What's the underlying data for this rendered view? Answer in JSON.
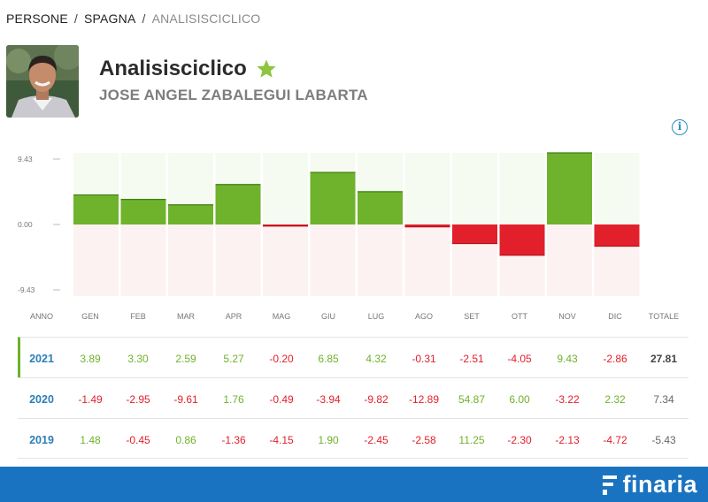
{
  "breadcrumb": [
    {
      "label": "PERSONE"
    },
    {
      "label": "SPAGNA"
    },
    {
      "label": "ANALISISCICLICO"
    }
  ],
  "profile": {
    "title": "Analisisciclico",
    "subtitle": "JOSE ANGEL ZABALEGUI LABARTA",
    "favorite_icon": "star-icon",
    "favorite_color": "#8cc63f"
  },
  "chart_data": {
    "type": "bar",
    "categories": [
      "GEN",
      "FEB",
      "MAR",
      "APR",
      "MAG",
      "GIU",
      "LUG",
      "AGO",
      "SET",
      "OTT",
      "NOV",
      "DIC"
    ],
    "values": [
      3.89,
      3.3,
      2.59,
      5.27,
      -0.2,
      6.85,
      4.32,
      -0.31,
      -2.51,
      -4.05,
      9.43,
      -2.86
    ],
    "y_ticks": [
      "9.43",
      "0.00",
      "-9.43"
    ],
    "ylim": [
      -9.43,
      9.43
    ],
    "positive_color": "#6fb22c",
    "negative_color": "#e2202b"
  },
  "table": {
    "headers": [
      "ANNO",
      "GEN",
      "FEB",
      "MAR",
      "APR",
      "MAG",
      "GIU",
      "LUG",
      "AGO",
      "SET",
      "OTT",
      "NOV",
      "DIC",
      "TOTALE"
    ],
    "rows": [
      {
        "year": "2021",
        "values": [
          "3.89",
          "3.30",
          "2.59",
          "5.27",
          "-0.20",
          "6.85",
          "4.32",
          "-0.31",
          "-2.51",
          "-4.05",
          "9.43",
          "-2.86"
        ],
        "total": "27.81",
        "active": true
      },
      {
        "year": "2020",
        "values": [
          "-1.49",
          "-2.95",
          "-9.61",
          "1.76",
          "-0.49",
          "-3.94",
          "-9.82",
          "-12.89",
          "54.87",
          "6.00",
          "-3.22",
          "2.32"
        ],
        "total": "7.34",
        "active": false
      },
      {
        "year": "2019",
        "values": [
          "1.48",
          "-0.45",
          "0.86",
          "-1.36",
          "-4.15",
          "1.90",
          "-2.45",
          "-2.58",
          "11.25",
          "-2.30",
          "-2.13",
          "-4.72"
        ],
        "total": "-5.43",
        "active": false
      }
    ]
  },
  "footer": {
    "brand": "finaria",
    "background": "#1a73c0"
  }
}
